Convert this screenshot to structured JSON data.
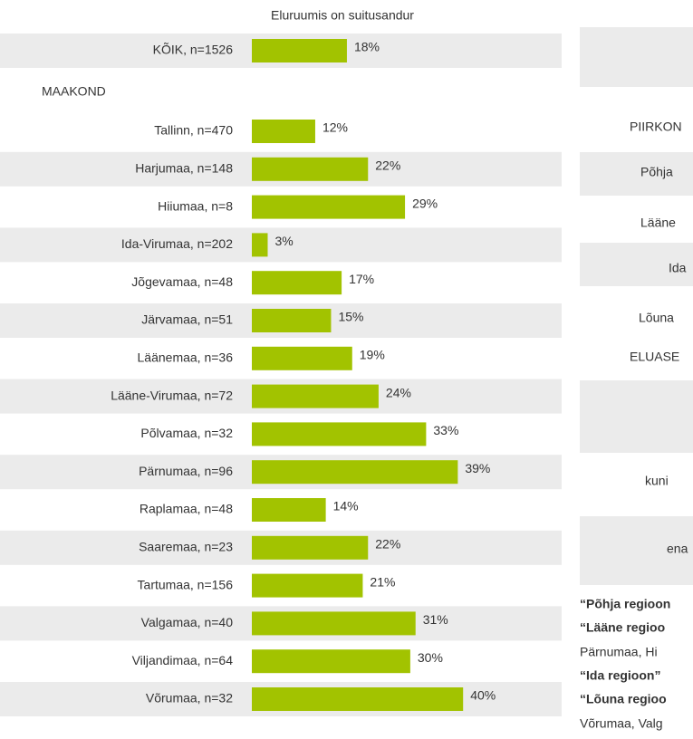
{
  "chart_data": {
    "type": "bar",
    "orientation": "horizontal",
    "title": "Eluruumis on suitusandur",
    "group_label": "MAAKOND",
    "categories": [
      "KÕIK, n=1526",
      "Tallinn, n=470",
      "Harjumaa, n=148",
      "Hiiumaa, n=8",
      "Ida-Virumaa, n=202",
      "Jõgevamaa, n=48",
      "Järvamaa, n=51",
      "Läänemaa, n=36",
      "Lääne-Virumaa, n=72",
      "Põlvamaa, n=32",
      "Pärnumaa, n=96",
      "Raplamaa, n=48",
      "Saaremaa, n=23",
      "Tartumaa, n=156",
      "Valgamaa, n=40",
      "Viljandimaa, n=64",
      "Võrumaa, n=32"
    ],
    "values": [
      18,
      12,
      22,
      29,
      3,
      17,
      15,
      19,
      24,
      33,
      39,
      14,
      22,
      21,
      31,
      30,
      40
    ],
    "value_labels": [
      "18%",
      "12%",
      "22%",
      "29%",
      "3%",
      "17%",
      "15%",
      "19%",
      "24%",
      "33%",
      "39%",
      "14%",
      "22%",
      "21%",
      "31%",
      "30%",
      "40%"
    ],
    "color": "#a2c300"
  },
  "right_panel": {
    "labels": [
      "PIIRKON",
      "Põhja",
      "Lääne",
      "Ida",
      "Lõuna",
      "ELUASE",
      "kuni",
      "ena"
    ],
    "notes": [
      {
        "text": "“Põhja regioon",
        "bold": true
      },
      {
        "text": "“Lääne regioo",
        "bold": true
      },
      {
        "text": "Pärnumaa, Hi",
        "bold": false
      },
      {
        "text": "“Ida regioon”",
        "bold": true
      },
      {
        "text": "“Lõuna regioo",
        "bold": true
      },
      {
        "text": "Võrumaa, Valg",
        "bold": false
      }
    ]
  }
}
